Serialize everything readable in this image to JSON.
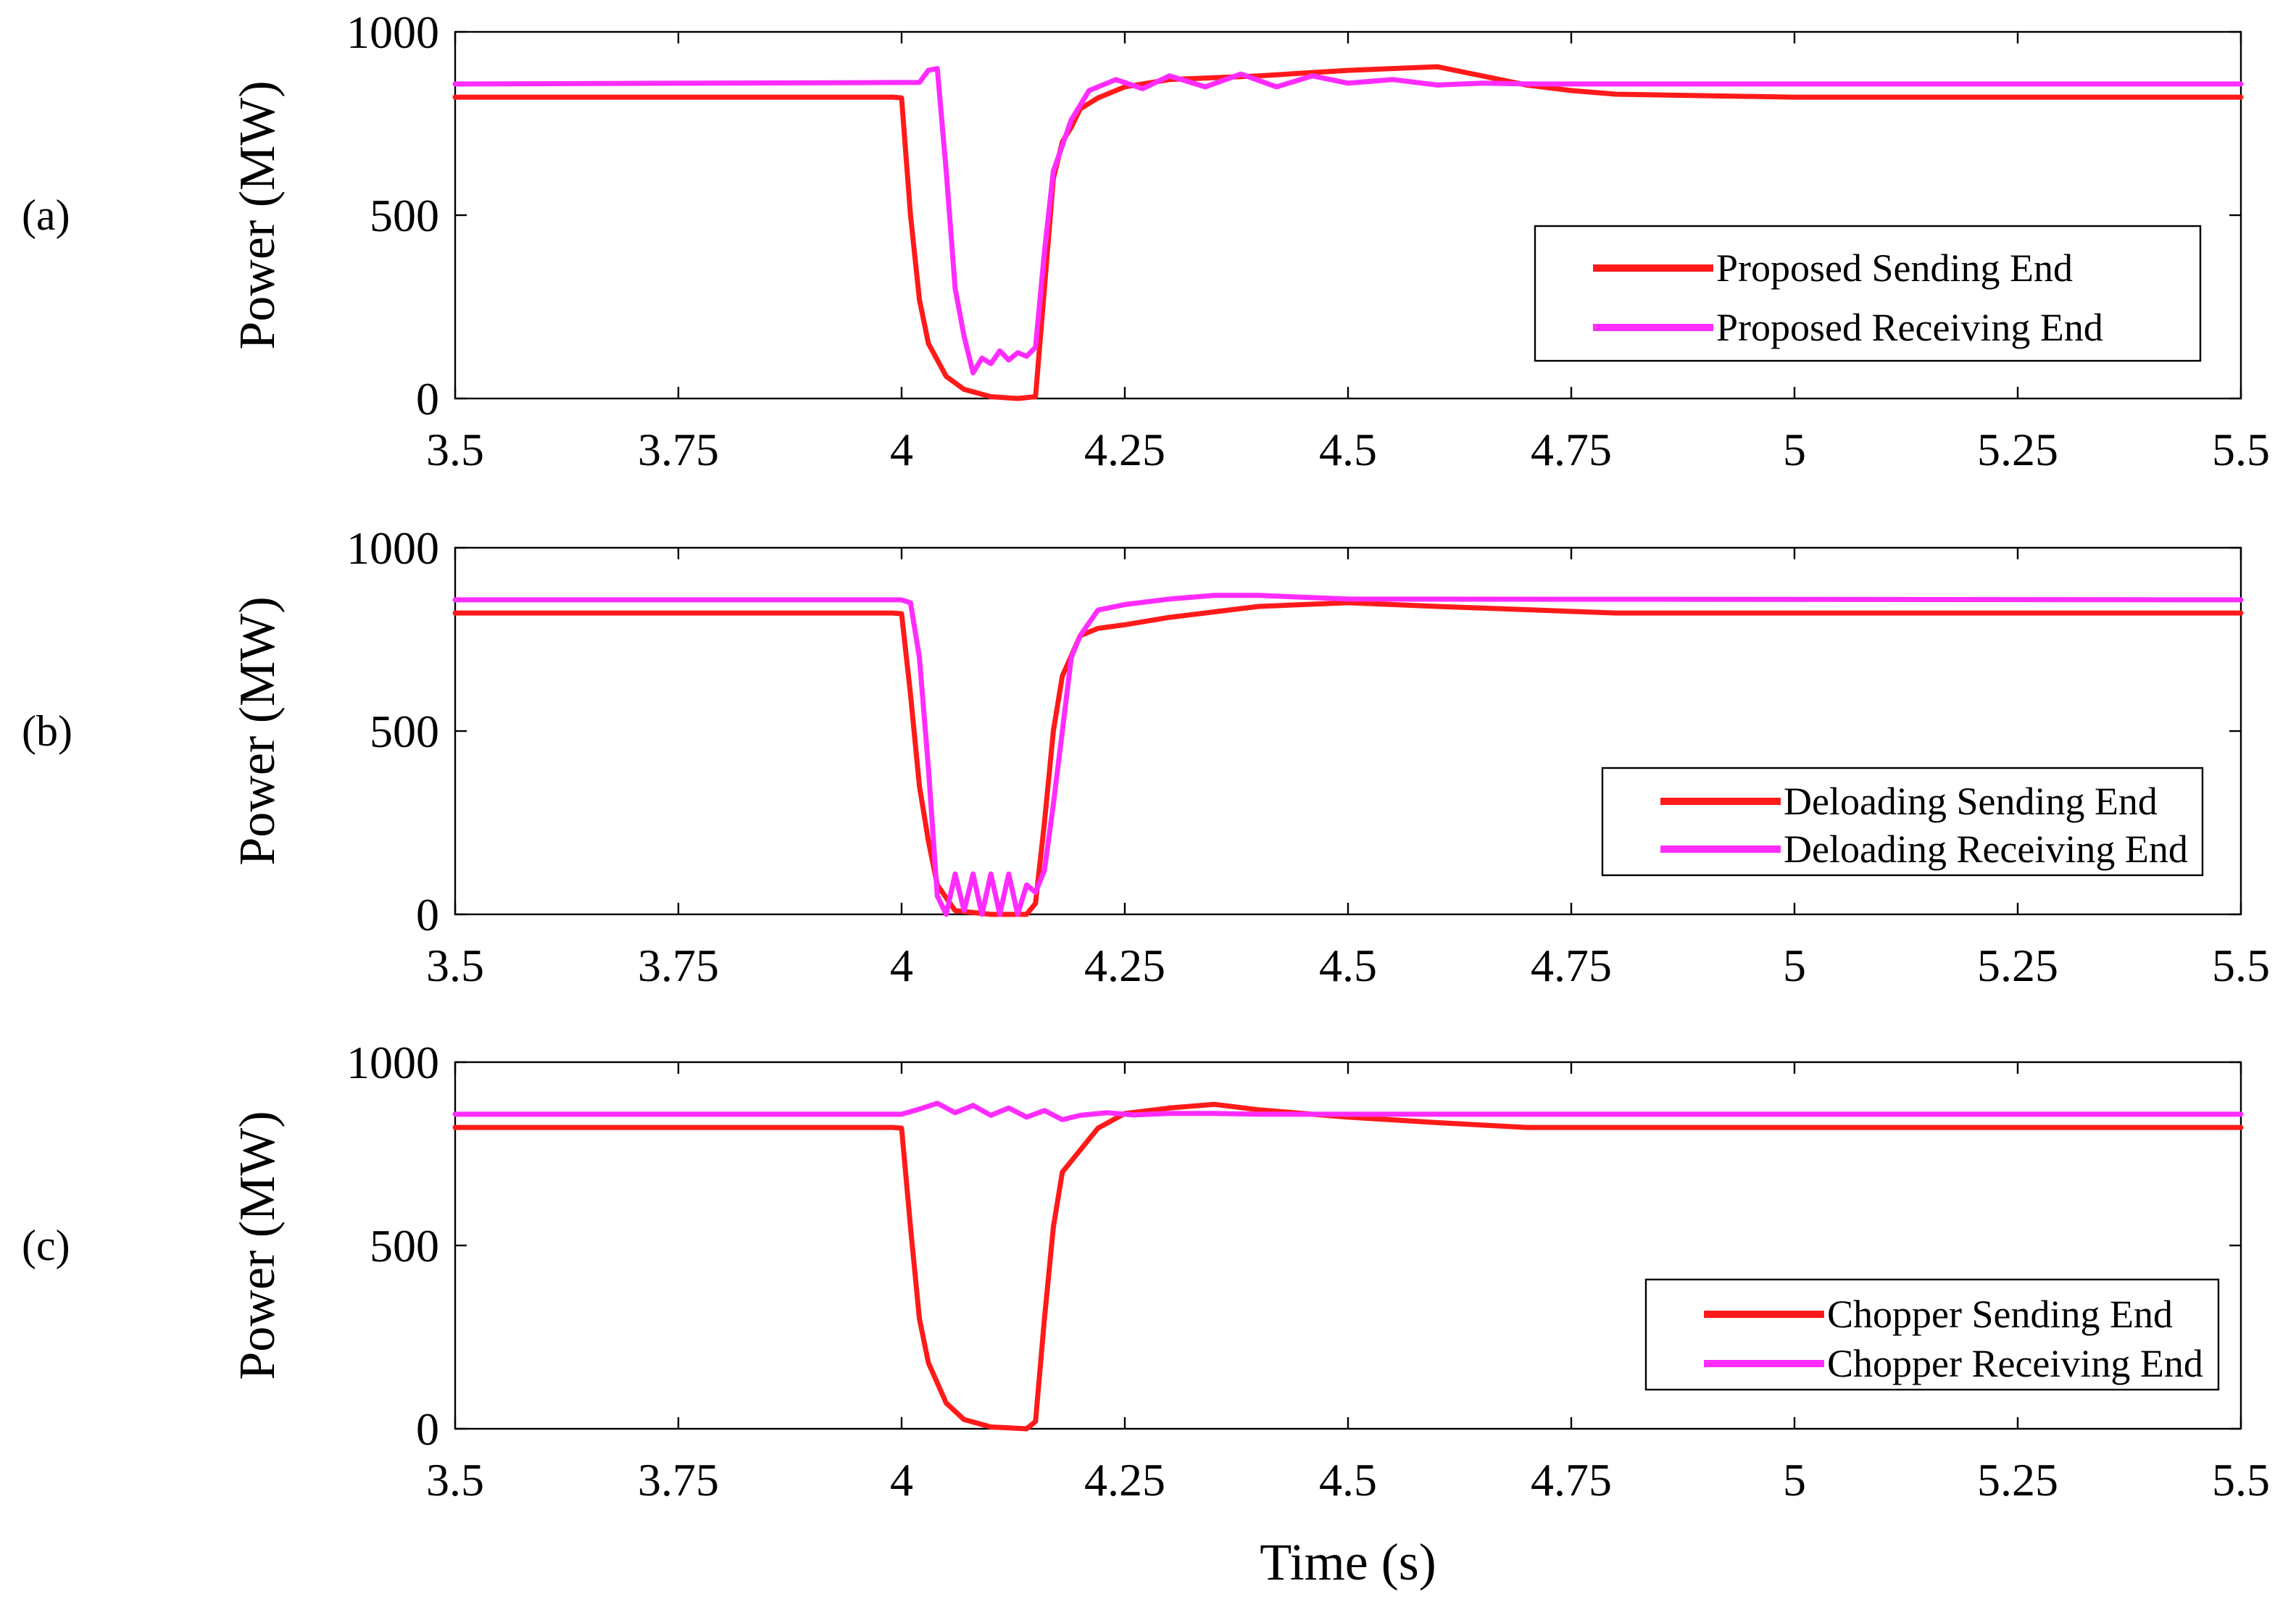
{
  "chart_data": [
    {
      "type": "line",
      "panel_label": "(a)",
      "ylabel": "Power (MW)",
      "xlabel": "",
      "xlim": [
        3.5,
        5.5
      ],
      "ylim": [
        0,
        1000
      ],
      "xticks": [
        "3.5",
        "3.75",
        "4",
        "4.25",
        "4.5",
        "4.75",
        "5",
        "5.25",
        "5.5"
      ],
      "yticks": [
        "0",
        "500",
        "1000"
      ],
      "legend_position": "right",
      "series": [
        {
          "name": "Proposed Sending End",
          "color": "#ff1a1a",
          "x": [
            3.5,
            3.99,
            4.0,
            4.01,
            4.02,
            4.03,
            4.05,
            4.07,
            4.1,
            4.13,
            4.15,
            4.16,
            4.17,
            4.18,
            4.19,
            4.2,
            4.22,
            4.25,
            4.3,
            4.4,
            4.5,
            4.6,
            4.65,
            4.7,
            4.75,
            4.8,
            5.0,
            5.5
          ],
          "y": [
            822,
            822,
            820,
            500,
            270,
            150,
            60,
            25,
            5,
            0,
            5,
            300,
            600,
            700,
            740,
            790,
            820,
            850,
            870,
            880,
            895,
            905,
            880,
            855,
            840,
            830,
            822,
            822
          ]
        },
        {
          "name": "Proposed Receiving End",
          "color": "#ff2cff",
          "x": [
            3.5,
            4.02,
            4.03,
            4.04,
            4.05,
            4.06,
            4.07,
            4.08,
            4.09,
            4.1,
            4.11,
            4.12,
            4.13,
            4.14,
            4.15,
            4.16,
            4.17,
            4.19,
            4.21,
            4.24,
            4.27,
            4.3,
            4.34,
            4.38,
            4.42,
            4.46,
            4.5,
            4.55,
            4.6,
            4.65,
            4.7,
            5.5
          ],
          "y": [
            858,
            862,
            895,
            900,
            620,
            300,
            170,
            70,
            110,
            95,
            130,
            105,
            125,
            115,
            140,
            400,
            620,
            760,
            840,
            870,
            845,
            880,
            850,
            885,
            850,
            880,
            860,
            870,
            855,
            860,
            858,
            858
          ]
        }
      ]
    },
    {
      "type": "line",
      "panel_label": "(b)",
      "ylabel": "Power (MW)",
      "xlabel": "",
      "xlim": [
        3.5,
        5.5
      ],
      "ylim": [
        0,
        1000
      ],
      "xticks": [
        "3.5",
        "3.75",
        "4",
        "4.25",
        "4.5",
        "4.75",
        "5",
        "5.25",
        "5.5"
      ],
      "yticks": [
        "0",
        "500",
        "1000"
      ],
      "legend_position": "right",
      "series": [
        {
          "name": "Deloading Sending End",
          "color": "#ff1a1a",
          "x": [
            3.5,
            3.99,
            4.0,
            4.01,
            4.02,
            4.03,
            4.04,
            4.06,
            4.1,
            4.14,
            4.15,
            4.16,
            4.17,
            4.18,
            4.2,
            4.22,
            4.25,
            4.3,
            4.35,
            4.4,
            4.5,
            4.6,
            4.8,
            5.5
          ],
          "y": [
            822,
            822,
            820,
            600,
            350,
            200,
            80,
            10,
            0,
            0,
            30,
            250,
            500,
            650,
            760,
            780,
            790,
            810,
            825,
            840,
            850,
            840,
            822,
            822
          ]
        },
        {
          "name": "Deloading Receiving End",
          "color": "#ff2cff",
          "x": [
            3.5,
            4.0,
            4.01,
            4.02,
            4.03,
            4.04,
            4.05,
            4.06,
            4.07,
            4.08,
            4.09,
            4.1,
            4.11,
            4.12,
            4.13,
            4.14,
            4.15,
            4.16,
            4.17,
            4.18,
            4.19,
            4.2,
            4.22,
            4.25,
            4.3,
            4.35,
            4.4,
            4.5,
            5.5
          ],
          "y": [
            858,
            858,
            850,
            700,
            400,
            50,
            0,
            110,
            10,
            110,
            0,
            110,
            0,
            110,
            0,
            80,
            60,
            120,
            300,
            500,
            700,
            760,
            830,
            845,
            860,
            870,
            870,
            860,
            858
          ]
        }
      ]
    },
    {
      "type": "line",
      "panel_label": "(c)",
      "ylabel": "Power (MW)",
      "xlabel": "Time (s)",
      "xlim": [
        3.5,
        5.5
      ],
      "ylim": [
        0,
        1000
      ],
      "xticks": [
        "3.5",
        "3.75",
        "4",
        "4.25",
        "4.5",
        "4.75",
        "5",
        "5.25",
        "5.5"
      ],
      "yticks": [
        "0",
        "500",
        "1000"
      ],
      "legend_position": "right",
      "series": [
        {
          "name": "Chopper Sending End",
          "color": "#ff1a1a",
          "x": [
            3.5,
            3.99,
            4.0,
            4.01,
            4.02,
            4.03,
            4.05,
            4.07,
            4.1,
            4.14,
            4.15,
            4.16,
            4.17,
            4.18,
            4.2,
            4.22,
            4.25,
            4.3,
            4.35,
            4.4,
            4.5,
            4.6,
            4.7,
            5.5
          ],
          "y": [
            822,
            822,
            820,
            550,
            300,
            180,
            70,
            25,
            5,
            0,
            20,
            300,
            550,
            700,
            760,
            820,
            860,
            875,
            885,
            870,
            850,
            835,
            822,
            822
          ]
        },
        {
          "name": "Chopper Receiving End",
          "color": "#ff2cff",
          "x": [
            3.5,
            4.0,
            4.02,
            4.04,
            4.06,
            4.08,
            4.1,
            4.12,
            4.14,
            4.16,
            4.18,
            4.2,
            4.23,
            4.26,
            4.3,
            4.35,
            4.4,
            4.5,
            5.5
          ],
          "y": [
            858,
            858,
            872,
            888,
            862,
            882,
            855,
            875,
            850,
            868,
            843,
            855,
            862,
            856,
            860,
            860,
            858,
            858,
            858
          ]
        }
      ]
    }
  ]
}
